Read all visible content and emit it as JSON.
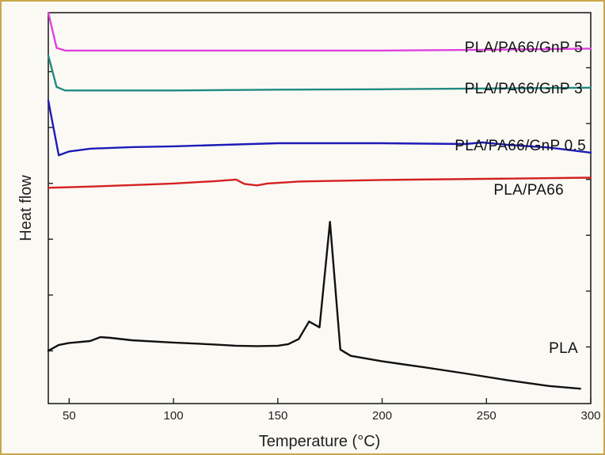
{
  "chart_data": {
    "type": "line",
    "title": "",
    "xlabel": "Temperature (°C)",
    "ylabel": "Heat flow",
    "xlim": [
      40,
      300
    ],
    "ylim": [
      0,
      100
    ],
    "x_ticks": [
      50,
      100,
      150,
      200,
      250,
      300
    ],
    "grid": false,
    "legend": "inline labels near each curve",
    "series": [
      {
        "name": "PLA/PA66/GnP 5",
        "color": "#e040e0",
        "points": [
          [
            40,
            100
          ],
          [
            44,
            91
          ],
          [
            48,
            90.3
          ],
          [
            60,
            90.3
          ],
          [
            100,
            90.3
          ],
          [
            150,
            90.3
          ],
          [
            200,
            90.3
          ],
          [
            250,
            90.5
          ],
          [
            300,
            90.8
          ]
        ]
      },
      {
        "name": "PLA/PA66/GnP 3",
        "color": "#1f8a80",
        "points": [
          [
            40,
            89
          ],
          [
            44,
            81
          ],
          [
            48,
            80.1
          ],
          [
            60,
            80.1
          ],
          [
            100,
            80.1
          ],
          [
            150,
            80.3
          ],
          [
            200,
            80.4
          ],
          [
            250,
            80.6
          ],
          [
            300,
            80.8
          ]
        ]
      },
      {
        "name": "PLA/PA66/GnP 0.5",
        "color": "#1c1cb8",
        "points": [
          [
            40,
            77.5
          ],
          [
            45,
            63.5
          ],
          [
            50,
            64.5
          ],
          [
            60,
            65.2
          ],
          [
            80,
            65.6
          ],
          [
            100,
            65.8
          ],
          [
            150,
            66.6
          ],
          [
            200,
            66.6
          ],
          [
            240,
            66.4
          ],
          [
            248,
            66.8
          ],
          [
            260,
            66.2
          ],
          [
            280,
            65.5
          ],
          [
            300,
            64.2
          ]
        ]
      },
      {
        "name": "PLA/PA66",
        "color": "#d42020",
        "points": [
          [
            40,
            55.2
          ],
          [
            60,
            55.5
          ],
          [
            80,
            55.9
          ],
          [
            100,
            56.3
          ],
          [
            120,
            56.9
          ],
          [
            130,
            57.3
          ],
          [
            134,
            56.2
          ],
          [
            140,
            55.8
          ],
          [
            145,
            56.3
          ],
          [
            160,
            56.8
          ],
          [
            200,
            57.2
          ],
          [
            250,
            57.5
          ],
          [
            300,
            57.8
          ]
        ]
      },
      {
        "name": "PLA",
        "color": "#111111",
        "points": [
          [
            40,
            13.5
          ],
          [
            45,
            15
          ],
          [
            50,
            15.5
          ],
          [
            60,
            16
          ],
          [
            65,
            17
          ],
          [
            70,
            16.8
          ],
          [
            80,
            16.2
          ],
          [
            100,
            15.6
          ],
          [
            120,
            15.1
          ],
          [
            130,
            14.8
          ],
          [
            140,
            14.7
          ],
          [
            150,
            14.8
          ],
          [
            155,
            15.2
          ],
          [
            160,
            16.5
          ],
          [
            165,
            21
          ],
          [
            170,
            19.5
          ],
          [
            175,
            46.5
          ],
          [
            180,
            13.8
          ],
          [
            185,
            12.2
          ],
          [
            200,
            10.8
          ],
          [
            220,
            9.3
          ],
          [
            240,
            7.7
          ],
          [
            260,
            6
          ],
          [
            280,
            4.5
          ],
          [
            295,
            3.8
          ]
        ]
      }
    ]
  }
}
